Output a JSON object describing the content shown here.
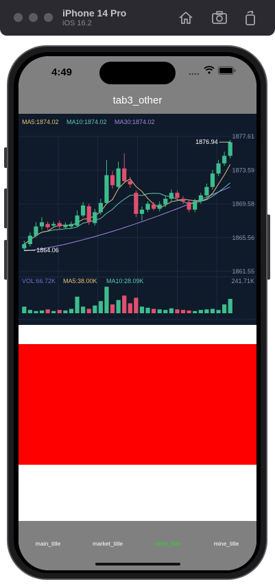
{
  "simulator": {
    "device": "iPhone 14 Pro",
    "os": "iOS 16.2",
    "icons": [
      "home-icon",
      "screenshot-icon",
      "rotate-icon"
    ]
  },
  "status_bar": {
    "time": "4:49",
    "icons": [
      "signal-icon",
      "wifi-icon",
      "battery-icon"
    ]
  },
  "nav": {
    "title": "tab3_other"
  },
  "chart_data": {
    "type": "candlestick",
    "indicators": {
      "ma5": "MA5:1874.02",
      "ma10": "MA10:1874.02",
      "ma30": "MA30:1874.02"
    },
    "y_ticks": [
      "1877.61",
      "1873.59",
      "1869.58",
      "1865.56",
      "1861.55"
    ],
    "ylim": [
      1861.55,
      1877.61
    ],
    "max_label": "1876.94",
    "min_label": "1864.06",
    "candles": [
      {
        "o": 1864.3,
        "c": 1864.8,
        "h": 1865.2,
        "l": 1864.0
      },
      {
        "o": 1864.8,
        "c": 1865.8,
        "h": 1866.2,
        "l": 1864.5
      },
      {
        "o": 1865.8,
        "c": 1866.9,
        "h": 1867.4,
        "l": 1865.6
      },
      {
        "o": 1866.9,
        "c": 1867.4,
        "h": 1868.0,
        "l": 1866.5
      },
      {
        "o": 1867.2,
        "c": 1866.8,
        "h": 1867.5,
        "l": 1866.5
      },
      {
        "o": 1867.0,
        "c": 1867.2,
        "h": 1867.5,
        "l": 1866.8
      },
      {
        "o": 1867.3,
        "c": 1866.9,
        "h": 1867.6,
        "l": 1866.6
      },
      {
        "o": 1866.8,
        "c": 1867.1,
        "h": 1867.4,
        "l": 1866.6
      },
      {
        "o": 1866.9,
        "c": 1867.2,
        "h": 1867.5,
        "l": 1866.6
      },
      {
        "o": 1867.0,
        "c": 1868.2,
        "h": 1868.8,
        "l": 1866.8
      },
      {
        "o": 1868.2,
        "c": 1869.4,
        "h": 1869.8,
        "l": 1868.0
      },
      {
        "o": 1869.3,
        "c": 1867.4,
        "h": 1869.6,
        "l": 1867.1
      },
      {
        "o": 1867.3,
        "c": 1868.6,
        "h": 1869.0,
        "l": 1867.0
      },
      {
        "o": 1868.6,
        "c": 1869.7,
        "h": 1870.2,
        "l": 1868.3
      },
      {
        "o": 1869.7,
        "c": 1873.0,
        "h": 1874.8,
        "l": 1869.5
      },
      {
        "o": 1873.0,
        "c": 1871.8,
        "h": 1873.5,
        "l": 1871.4
      },
      {
        "o": 1871.6,
        "c": 1873.8,
        "h": 1874.6,
        "l": 1871.3
      },
      {
        "o": 1873.8,
        "c": 1872.3,
        "h": 1875.6,
        "l": 1872.0
      },
      {
        "o": 1872.3,
        "c": 1871.9,
        "h": 1872.8,
        "l": 1871.5
      },
      {
        "o": 1870.9,
        "c": 1868.4,
        "h": 1871.2,
        "l": 1868.0
      },
      {
        "o": 1868.4,
        "c": 1868.9,
        "h": 1869.3,
        "l": 1867.6
      },
      {
        "o": 1868.9,
        "c": 1869.6,
        "h": 1869.9,
        "l": 1868.6
      },
      {
        "o": 1869.5,
        "c": 1869.0,
        "h": 1869.8,
        "l": 1868.8
      },
      {
        "o": 1869.0,
        "c": 1869.5,
        "h": 1869.9,
        "l": 1868.7
      },
      {
        "o": 1869.5,
        "c": 1870.2,
        "h": 1870.5,
        "l": 1869.2
      },
      {
        "o": 1870.2,
        "c": 1870.9,
        "h": 1871.3,
        "l": 1869.9
      },
      {
        "o": 1870.9,
        "c": 1870.3,
        "h": 1871.2,
        "l": 1870.0
      },
      {
        "o": 1870.2,
        "c": 1869.9,
        "h": 1870.5,
        "l": 1869.6
      },
      {
        "o": 1869.8,
        "c": 1868.9,
        "h": 1870.1,
        "l": 1868.6
      },
      {
        "o": 1868.9,
        "c": 1869.9,
        "h": 1870.2,
        "l": 1868.6
      },
      {
        "o": 1869.9,
        "c": 1870.6,
        "h": 1870.9,
        "l": 1869.6
      },
      {
        "o": 1870.6,
        "c": 1871.6,
        "h": 1872.0,
        "l": 1870.3
      },
      {
        "o": 1871.6,
        "c": 1873.2,
        "h": 1873.6,
        "l": 1871.3
      },
      {
        "o": 1873.2,
        "c": 1874.4,
        "h": 1874.8,
        "l": 1872.9
      },
      {
        "o": 1874.4,
        "c": 1875.3,
        "h": 1875.8,
        "l": 1874.1
      },
      {
        "o": 1875.3,
        "c": 1876.9,
        "h": 1877.2,
        "l": 1875.0
      }
    ],
    "volume": {
      "vol": "VOL:66.72K",
      "ma5": "MA5:38.00K",
      "ma10": "MA10:28.09K",
      "max_label": "241.71K",
      "ymax": 241.71,
      "values": [
        60,
        30,
        20,
        25,
        35,
        20,
        30,
        25,
        40,
        150,
        60,
        40,
        70,
        110,
        240,
        80,
        120,
        160,
        90,
        140,
        60,
        50,
        40,
        35,
        30,
        45,
        35,
        30,
        25,
        20,
        30,
        35,
        40,
        30,
        80,
        130
      ]
    },
    "colors": {
      "up": "#3dbd8c",
      "down": "#e0506f",
      "ma5": "#e5c07b",
      "ma10": "#5ec7b0",
      "ma30": "#a385e0"
    }
  },
  "tabs": [
    {
      "label": "main_title",
      "active": false
    },
    {
      "label": "market_title",
      "active": false
    },
    {
      "label": "other_title",
      "active": true
    },
    {
      "label": "mine_title",
      "active": false
    }
  ]
}
